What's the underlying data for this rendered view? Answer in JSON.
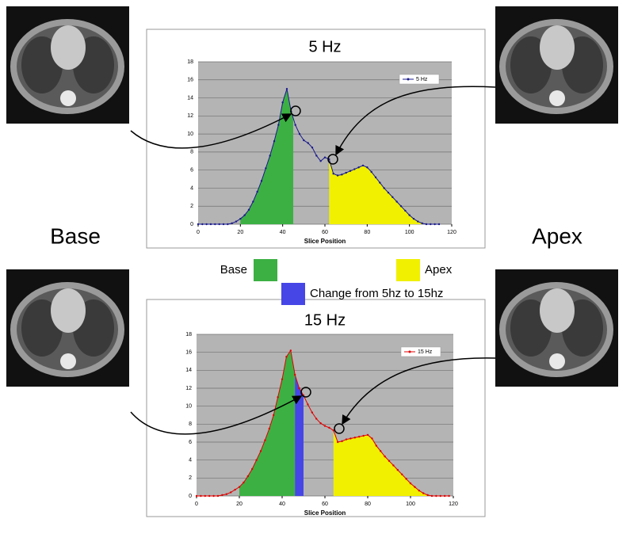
{
  "side_labels": {
    "left": "Base",
    "right": "Apex"
  },
  "legend": [
    {
      "name": "Base",
      "color": "#3cb043"
    },
    {
      "name": "Apex",
      "color": "#f0f000"
    },
    {
      "name": "Change from 5hz to 15hz",
      "color": "#4646e6"
    }
  ],
  "chart_data": [
    {
      "type": "line",
      "title": "5 Hz",
      "x_label": "Slice Position",
      "xlim": [
        0,
        120
      ],
      "xticks": [
        0,
        20,
        40,
        60,
        80,
        100,
        120
      ],
      "ylim": [
        0,
        18
      ],
      "yticks": [
        0,
        2,
        4,
        6,
        8,
        10,
        12,
        14,
        16,
        18
      ],
      "grid": true,
      "x": [
        0,
        2,
        4,
        6,
        8,
        10,
        12,
        14,
        16,
        18,
        20,
        22,
        24,
        26,
        28,
        30,
        32,
        34,
        36,
        38,
        40,
        42,
        44,
        46,
        48,
        50,
        52,
        54,
        56,
        58,
        60,
        62,
        64,
        66,
        68,
        70,
        72,
        74,
        76,
        78,
        80,
        82,
        84,
        86,
        88,
        90,
        92,
        94,
        96,
        98,
        100,
        102,
        104,
        106,
        108,
        110,
        112,
        114
      ],
      "series": [
        {
          "name": "5 Hz",
          "color": "#1a1a8c",
          "values": [
            0,
            0,
            0,
            0,
            0,
            0,
            0,
            0,
            0.1,
            0.3,
            0.6,
            1,
            1.6,
            2.5,
            3.6,
            4.8,
            6.2,
            7.6,
            9.2,
            11,
            13.5,
            15,
            12.5,
            11,
            10,
            9.3,
            9,
            8.5,
            7.6,
            7,
            7.4,
            7.2,
            5.6,
            5.4,
            5.5,
            5.7,
            5.9,
            6.1,
            6.3,
            6.5,
            6.3,
            5.8,
            5.2,
            4.6,
            4,
            3.5,
            3,
            2.5,
            2,
            1.5,
            1,
            0.6,
            0.3,
            0.1,
            0,
            0,
            0,
            0
          ]
        }
      ],
      "regions": [
        {
          "x": [
            20,
            45
          ],
          "color": "#3cb043"
        },
        {
          "x": [
            62,
            106
          ],
          "color": "#f0f000"
        }
      ]
    },
    {
      "type": "line",
      "title": "15 Hz",
      "x_label": "Slice Position",
      "xlim": [
        0,
        120
      ],
      "xticks": [
        0,
        20,
        40,
        60,
        80,
        100,
        120
      ],
      "ylim": [
        0,
        18
      ],
      "yticks": [
        0,
        2,
        4,
        6,
        8,
        10,
        12,
        14,
        16,
        18
      ],
      "grid": true,
      "x": [
        0,
        2,
        4,
        6,
        8,
        10,
        12,
        14,
        16,
        18,
        20,
        22,
        24,
        26,
        28,
        30,
        32,
        34,
        36,
        38,
        40,
        42,
        44,
        46,
        48,
        50,
        52,
        54,
        56,
        58,
        60,
        62,
        64,
        66,
        68,
        70,
        72,
        74,
        76,
        78,
        80,
        82,
        84,
        86,
        88,
        90,
        92,
        94,
        96,
        98,
        100,
        102,
        104,
        106,
        108,
        110,
        112,
        114,
        116,
        118
      ],
      "series": [
        {
          "name": "15 Hz",
          "color": "#e00000",
          "values": [
            0,
            0,
            0,
            0,
            0,
            0,
            0.1,
            0.2,
            0.4,
            0.7,
            1,
            1.5,
            2.2,
            3,
            4,
            5,
            6.2,
            7.5,
            9,
            11,
            13,
            15.5,
            16.2,
            13.5,
            12,
            11.2,
            10.2,
            9.3,
            8.6,
            8.1,
            7.8,
            7.6,
            7.3,
            6,
            6.1,
            6.3,
            6.4,
            6.5,
            6.6,
            6.7,
            6.8,
            6.4,
            5.6,
            5,
            4.4,
            3.9,
            3.4,
            2.9,
            2.4,
            1.9,
            1.4,
            1,
            0.6,
            0.3,
            0.1,
            0,
            0,
            0,
            0,
            0
          ]
        }
      ],
      "regions": [
        {
          "x": [
            20,
            46
          ],
          "color": "#3cb043"
        },
        {
          "x": [
            46,
            50
          ],
          "color": "#4646e6"
        },
        {
          "x": [
            64,
            108
          ],
          "color": "#f0f000"
        }
      ]
    }
  ]
}
